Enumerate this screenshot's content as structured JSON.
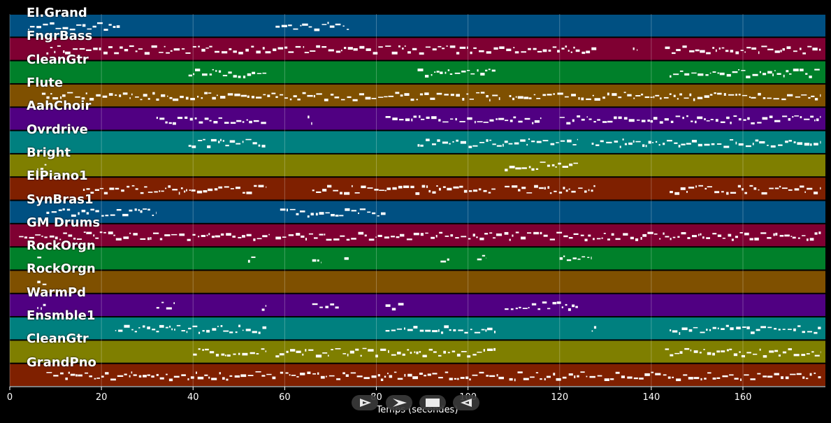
{
  "chart_data": {
    "type": "piano-roll",
    "xlabel": "Temps (secondes)",
    "xlim": [
      0,
      178
    ],
    "xticks": [
      0,
      20,
      40,
      60,
      80,
      100,
      120,
      140,
      160
    ],
    "grid": true,
    "tracks": [
      {
        "name": "El.Grand",
        "color": "#005082",
        "segments": [
          [
            4,
            24
          ],
          [
            58,
            74
          ]
        ]
      },
      {
        "name": "FngrBass",
        "color": "#7f0032",
        "segments": [
          [
            8,
            128
          ],
          [
            136,
            137
          ],
          [
            143,
            177
          ]
        ]
      },
      {
        "name": "CleanGtr",
        "color": "#00802a",
        "segments": [
          [
            39,
            56
          ],
          [
            89,
            106
          ],
          [
            144,
            177
          ]
        ]
      },
      {
        "name": "Flute",
        "color": "#7f5000",
        "segments": [
          [
            7,
            58
          ],
          [
            58,
            107
          ],
          [
            109,
            177
          ]
        ]
      },
      {
        "name": "AahChoir",
        "color": "#500082",
        "segments": [
          [
            32,
            56
          ],
          [
            65,
            66
          ],
          [
            82,
            116
          ],
          [
            120,
            177
          ]
        ]
      },
      {
        "name": "Ovrdrive",
        "color": "#00807f",
        "segments": [
          [
            39,
            56
          ],
          [
            89,
            124
          ],
          [
            127,
            177
          ]
        ]
      },
      {
        "name": "Bright",
        "color": "#7f7f00",
        "segments": [
          [
            6,
            8
          ],
          [
            108,
            124
          ]
        ]
      },
      {
        "name": "ElPiano1",
        "color": "#7f2000",
        "segments": [
          [
            16,
            56
          ],
          [
            66,
            106
          ],
          [
            108,
            128
          ],
          [
            144,
            177
          ]
        ]
      },
      {
        "name": "SynBras1",
        "color": "#005082",
        "segments": [
          [
            8,
            32
          ],
          [
            59,
            82
          ]
        ]
      },
      {
        "name": "GM Drums",
        "color": "#7f0032",
        "segments": [
          [
            2,
            57
          ],
          [
            58,
            177
          ]
        ]
      },
      {
        "name": "RockOrgn",
        "color": "#00802a",
        "segments": [
          [
            6,
            7
          ],
          [
            52,
            54
          ],
          [
            66,
            68
          ],
          [
            73,
            74
          ],
          [
            94,
            96
          ],
          [
            102,
            104
          ],
          [
            120,
            127
          ]
        ]
      },
      {
        "name": "RockOrgn",
        "color": "#7f5000",
        "segments": [
          [
            6,
            8
          ]
        ]
      },
      {
        "name": "WarmPd",
        "color": "#500082",
        "segments": [
          [
            6,
            8
          ],
          [
            32,
            36
          ],
          [
            55,
            56
          ],
          [
            66,
            72
          ],
          [
            82,
            86
          ],
          [
            108,
            124
          ]
        ]
      },
      {
        "name": "Ensmble1",
        "color": "#00807f",
        "segments": [
          [
            23,
            56
          ],
          [
            82,
            106
          ],
          [
            127,
            128
          ],
          [
            144,
            177
          ]
        ]
      },
      {
        "name": "CleanGtr",
        "color": "#7f7f00",
        "segments": [
          [
            40,
            56
          ],
          [
            58,
            106
          ],
          [
            143,
            177
          ]
        ]
      },
      {
        "name": "GrandPno",
        "color": "#7f2000",
        "segments": [
          [
            8,
            58
          ],
          [
            59,
            108
          ],
          [
            109,
            177
          ]
        ]
      }
    ]
  },
  "controls": {
    "play_icon": "play-outline-icon",
    "forward_icon": "forward-icon",
    "stop_icon": "stop-icon",
    "rewind_icon": "rewind-icon"
  },
  "colors": {
    "background": "#000000",
    "note": "#ffffff"
  }
}
